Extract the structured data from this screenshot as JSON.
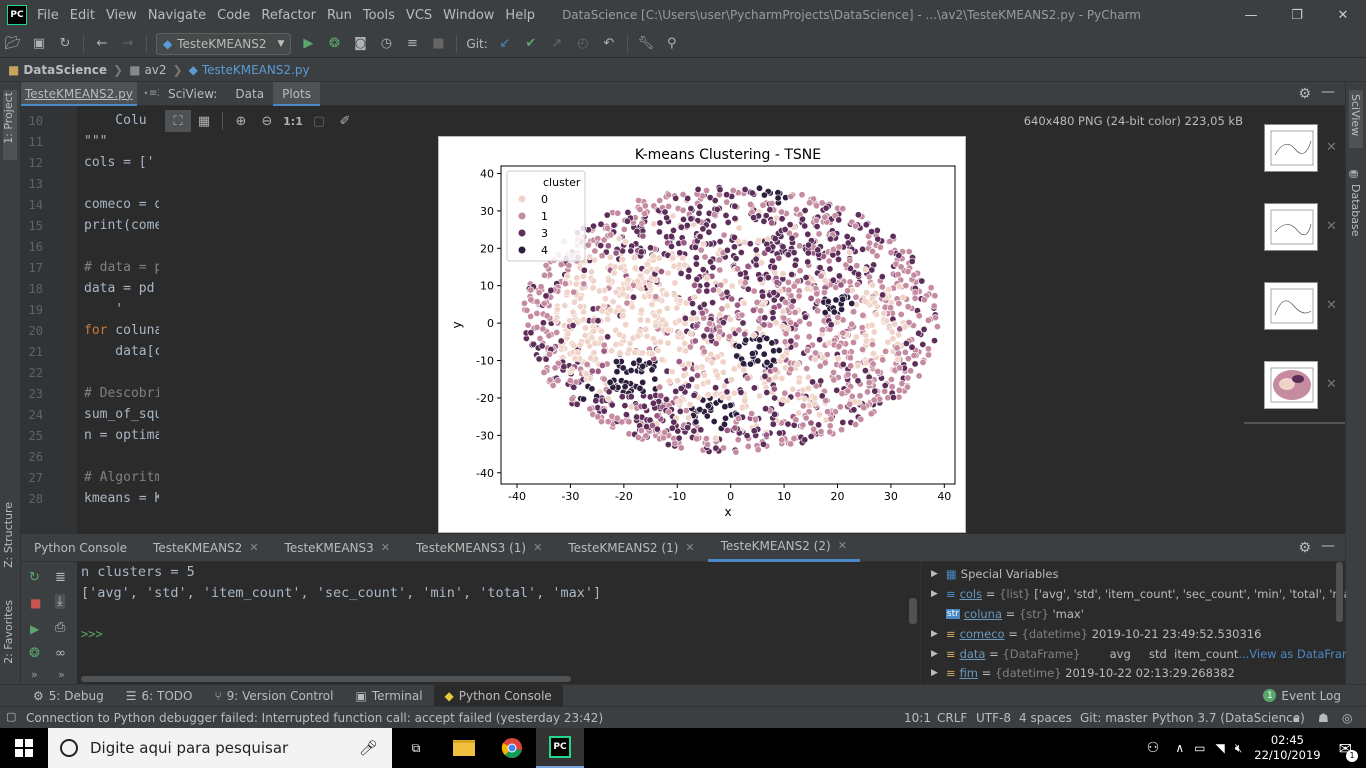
{
  "menubar": {
    "app_icon": "PC",
    "items": [
      "File",
      "Edit",
      "View",
      "Navigate",
      "Code",
      "Refactor",
      "Run",
      "Tools",
      "VCS",
      "Window",
      "Help"
    ],
    "title": "DataScience [C:\\Users\\user\\PycharmProjects\\DataScience] - ...\\av2\\TesteKMEANS2.py - PyCharm"
  },
  "toolbar": {
    "run_config": "TesteKMEANS2",
    "git_label": "Git:"
  },
  "navbar": {
    "crumbs": [
      "DataScience",
      "av2",
      "TesteKMEANS2.py"
    ]
  },
  "left_strip": {
    "project": "1: Project",
    "structure": "Z: Structure",
    "favorites": "2: Favorites"
  },
  "right_strip": {
    "sciview": "SciView",
    "database": "Database"
  },
  "editor": {
    "tab": "TesteKMEANS2.py",
    "tab_more": "⋆≡2",
    "lines": [
      {
        "n": "10",
        "t": "    Colu"
      },
      {
        "n": "11",
        "t": "\"\"\""
      },
      {
        "n": "12",
        "t": "cols = ['"
      },
      {
        "n": "13",
        "t": ""
      },
      {
        "n": "14",
        "t": "comeco = d"
      },
      {
        "n": "15",
        "t": "print(come"
      },
      {
        "n": "16",
        "t": ""
      },
      {
        "n": "17",
        "t": "# data = p"
      },
      {
        "n": "18",
        "t": "data = pd"
      },
      {
        "n": "19",
        "t": "    '"
      },
      {
        "n": "20",
        "t": "for coluna"
      },
      {
        "n": "21",
        "t": "    data[c"
      },
      {
        "n": "22",
        "t": ""
      },
      {
        "n": "23",
        "t": "# Descobri"
      },
      {
        "n": "24",
        "t": "sum_of_squ"
      },
      {
        "n": "25",
        "t": "n = optima"
      },
      {
        "n": "26",
        "t": ""
      },
      {
        "n": "27",
        "t": "# Algoritm"
      },
      {
        "n": "28",
        "t": "kmeans = K"
      }
    ]
  },
  "sciview": {
    "tabs": [
      "SciView:",
      "Data",
      "Plots"
    ],
    "zoom_label": "1:1",
    "image_info": "640x480 PNG (24-bit color) 223,05 kB"
  },
  "chart_data": {
    "type": "scatter",
    "title": "K-means Clustering - TSNE",
    "xlabel": "x",
    "ylabel": "y",
    "xlim": [
      -43,
      42
    ],
    "ylim": [
      -43,
      42
    ],
    "xticks": [
      -40,
      -30,
      -20,
      -10,
      0,
      10,
      20,
      30,
      40
    ],
    "yticks": [
      40,
      30,
      20,
      10,
      0,
      -10,
      -20,
      -30,
      -40
    ],
    "legend": {
      "title": "cluster",
      "position": "upper-left",
      "entries": [
        "0",
        "1",
        "3",
        "4"
      ]
    },
    "colors": {
      "0": "#f1d4c9",
      "1": "#c58ba1",
      "2": "#9c5b84",
      "3": "#5c2e59",
      "4": "#2d1e3e"
    },
    "series": [
      {
        "name": "0",
        "region": "central and left-center areas",
        "approx_points": 600
      },
      {
        "name": "1",
        "region": "outer ring and right side",
        "approx_points": 700
      },
      {
        "name": "3",
        "region": "upper and lower bands",
        "approx_points": 600
      },
      {
        "name": "4",
        "region": "small dense clusters near (-18,-14), (-3,-24), (5,-8), (20,5)",
        "approx_points": 120
      }
    ]
  },
  "bottom_tabs": [
    {
      "label": "Python Console",
      "closable": false
    },
    {
      "label": "TesteKMEANS2",
      "closable": true
    },
    {
      "label": "TesteKMEANS3",
      "closable": true
    },
    {
      "label": "TesteKMEANS3 (1)",
      "closable": true
    },
    {
      "label": "TesteKMEANS2 (1)",
      "closable": true
    },
    {
      "label": "TesteKMEANS2 (2)",
      "closable": true,
      "active": true
    }
  ],
  "console": {
    "lines": [
      "n clusters = 5",
      "['avg', 'std', 'item_count', 'sec_count', 'min', 'total', 'max']"
    ],
    "prompt": ">>>"
  },
  "variables": [
    {
      "name": "Special Variables",
      "type": "",
      "value": ""
    },
    {
      "name": "cols",
      "type": "{list}",
      "value": "['avg', 'std', 'item_count', 'sec_count', 'min', 'total', 'max']"
    },
    {
      "name": "coluna",
      "type": "{str}",
      "value": "'max'"
    },
    {
      "name": "comeco",
      "type": "{datetime}",
      "value": "2019-10-21 23:49:52.530316"
    },
    {
      "name": "data",
      "type": "{DataFrame}",
      "value": "       avg     std  item_count",
      "link": "...View as DataFrame"
    },
    {
      "name": "fim",
      "type": "{datetime}",
      "value": "2019-10-22 02:13:29.268382"
    }
  ],
  "toolwindows": [
    {
      "label": "5: Debug",
      "icon": "gear"
    },
    {
      "label": "6: TODO",
      "icon": "list"
    },
    {
      "label": "9: Version Control",
      "icon": "vcs"
    },
    {
      "label": "Terminal",
      "icon": "terminal"
    },
    {
      "label": "Python Console",
      "icon": "python",
      "active": true
    }
  ],
  "event_log": {
    "count": "1",
    "label": "Event Log"
  },
  "status": {
    "message": "Connection to Python debugger failed: Interrupted function call: accept failed (yesterday 23:42)",
    "position": "10:1",
    "line_sep": "CRLF",
    "encoding": "UTF-8",
    "indent": "4 spaces",
    "git": "Git: master",
    "interpreter": "Python 3.7 (DataScience)"
  },
  "taskbar": {
    "search_placeholder": "Digite aqui para pesquisar",
    "time": "02:45",
    "date": "22/10/2019",
    "notifications": "1"
  }
}
